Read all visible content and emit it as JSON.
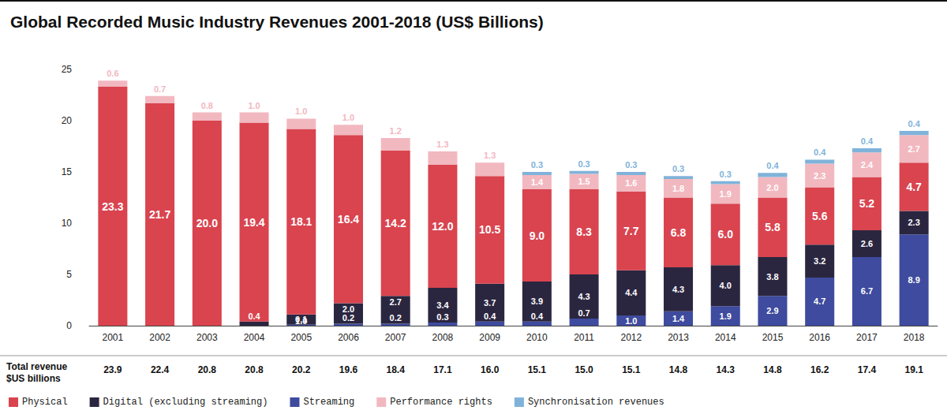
{
  "chart_data": {
    "type": "bar",
    "title": "Global Recorded Music Industry Revenues 2001-2018 (US$ Billions)",
    "categories": [
      "2001",
      "2002",
      "2003",
      "2004",
      "2005",
      "2006",
      "2007",
      "2008",
      "2009",
      "2010",
      "2011",
      "2012",
      "2013",
      "2014",
      "2015",
      "2016",
      "2017",
      "2018"
    ],
    "series": [
      {
        "name": "Physical",
        "color": "#d9444f",
        "values": [
          23.3,
          21.7,
          20.0,
          19.4,
          18.1,
          16.4,
          14.2,
          12.0,
          10.5,
          9.0,
          8.3,
          7.7,
          6.8,
          6.0,
          5.8,
          5.6,
          5.2,
          4.7
        ],
        "value_labels": [
          "23.3",
          "21.7",
          "20.0",
          "19.4",
          "18.1",
          "16.4",
          "14.2",
          "12.0",
          "10.5",
          "9.0",
          "8.3",
          "7.7",
          "6.8",
          "6.0",
          "5.8",
          "5.6",
          "5.2",
          "4.7"
        ]
      },
      {
        "name": "Digital (excluding streaming)",
        "color": "#2b2640",
        "values": [
          null,
          null,
          null,
          0.4,
          1.0,
          2.0,
          2.7,
          3.4,
          3.7,
          3.9,
          4.3,
          4.4,
          4.3,
          4.0,
          3.8,
          3.2,
          2.6,
          2.3
        ],
        "value_labels": [
          null,
          null,
          null,
          "0.4",
          "1.0",
          "2.0",
          "2.7",
          "3.4",
          "3.7",
          "3.9",
          "4.3",
          "4.4",
          "4.3",
          "4.0",
          "3.8",
          "3.2",
          "2.6",
          "2.3"
        ]
      },
      {
        "name": "Streaming",
        "color": "#3e4b9e",
        "values": [
          null,
          null,
          null,
          null,
          0.1,
          0.2,
          0.2,
          0.3,
          0.4,
          0.4,
          0.7,
          1.0,
          1.4,
          1.9,
          2.9,
          4.7,
          6.7,
          8.9
        ],
        "value_labels": [
          null,
          null,
          null,
          null,
          "0.1",
          "0.2",
          "0.2",
          "0.3",
          "0.4",
          "0.4",
          "0.7",
          "1.0",
          "1.4",
          "1.9",
          "2.9",
          "4.7",
          "6.7",
          "8.9"
        ]
      },
      {
        "name": "Performance rights",
        "color": "#f2b8c0",
        "values": [
          0.6,
          0.7,
          0.8,
          1.0,
          1.0,
          1.0,
          1.2,
          1.3,
          1.3,
          1.4,
          1.5,
          1.6,
          1.8,
          1.9,
          2.0,
          2.3,
          2.4,
          2.7
        ],
        "value_labels": [
          "0.6",
          "0.7",
          "0.8",
          "1.0",
          "1.0",
          "1.0",
          "1.2",
          "1.3",
          "1.3",
          "1.4",
          "1.5",
          "1.6",
          "1.8",
          "1.9",
          "2.0",
          "2.3",
          "2.4",
          "2.7"
        ]
      },
      {
        "name": "Synchronisation revenues",
        "color": "#80b3da",
        "values": [
          null,
          null,
          null,
          null,
          null,
          null,
          null,
          null,
          null,
          0.3,
          0.3,
          0.3,
          0.3,
          0.3,
          0.4,
          0.4,
          0.4,
          0.4
        ],
        "value_labels": [
          null,
          null,
          null,
          null,
          null,
          null,
          null,
          null,
          null,
          "0.3",
          "0.3",
          "0.3",
          "0.3",
          "0.3",
          "0.4",
          "0.4",
          "0.4",
          "0.4"
        ]
      }
    ],
    "ylim": [
      0,
      25
    ],
    "yticks": [
      0,
      5,
      10,
      15,
      20,
      25
    ],
    "grid": false,
    "stacked": true,
    "data_labels": true,
    "legend": "bottom-left",
    "totals_title": "Total revenue\n$US billions",
    "totals": {
      "values": [
        23.9,
        22.4,
        20.8,
        20.8,
        20.2,
        19.6,
        18.4,
        17.1,
        16.0,
        15.1,
        15.0,
        15.1,
        14.8,
        14.3,
        14.8,
        16.2,
        17.4,
        19.1
      ],
      "value_labels": [
        "23.9",
        "22.4",
        "20.8",
        "20.8",
        "20.2",
        "19.6",
        "18.4",
        "17.1",
        "16.0",
        "15.1",
        "15.0",
        "15.1",
        "14.8",
        "14.3",
        "14.8",
        "16.2",
        "17.4",
        "19.1"
      ]
    }
  }
}
